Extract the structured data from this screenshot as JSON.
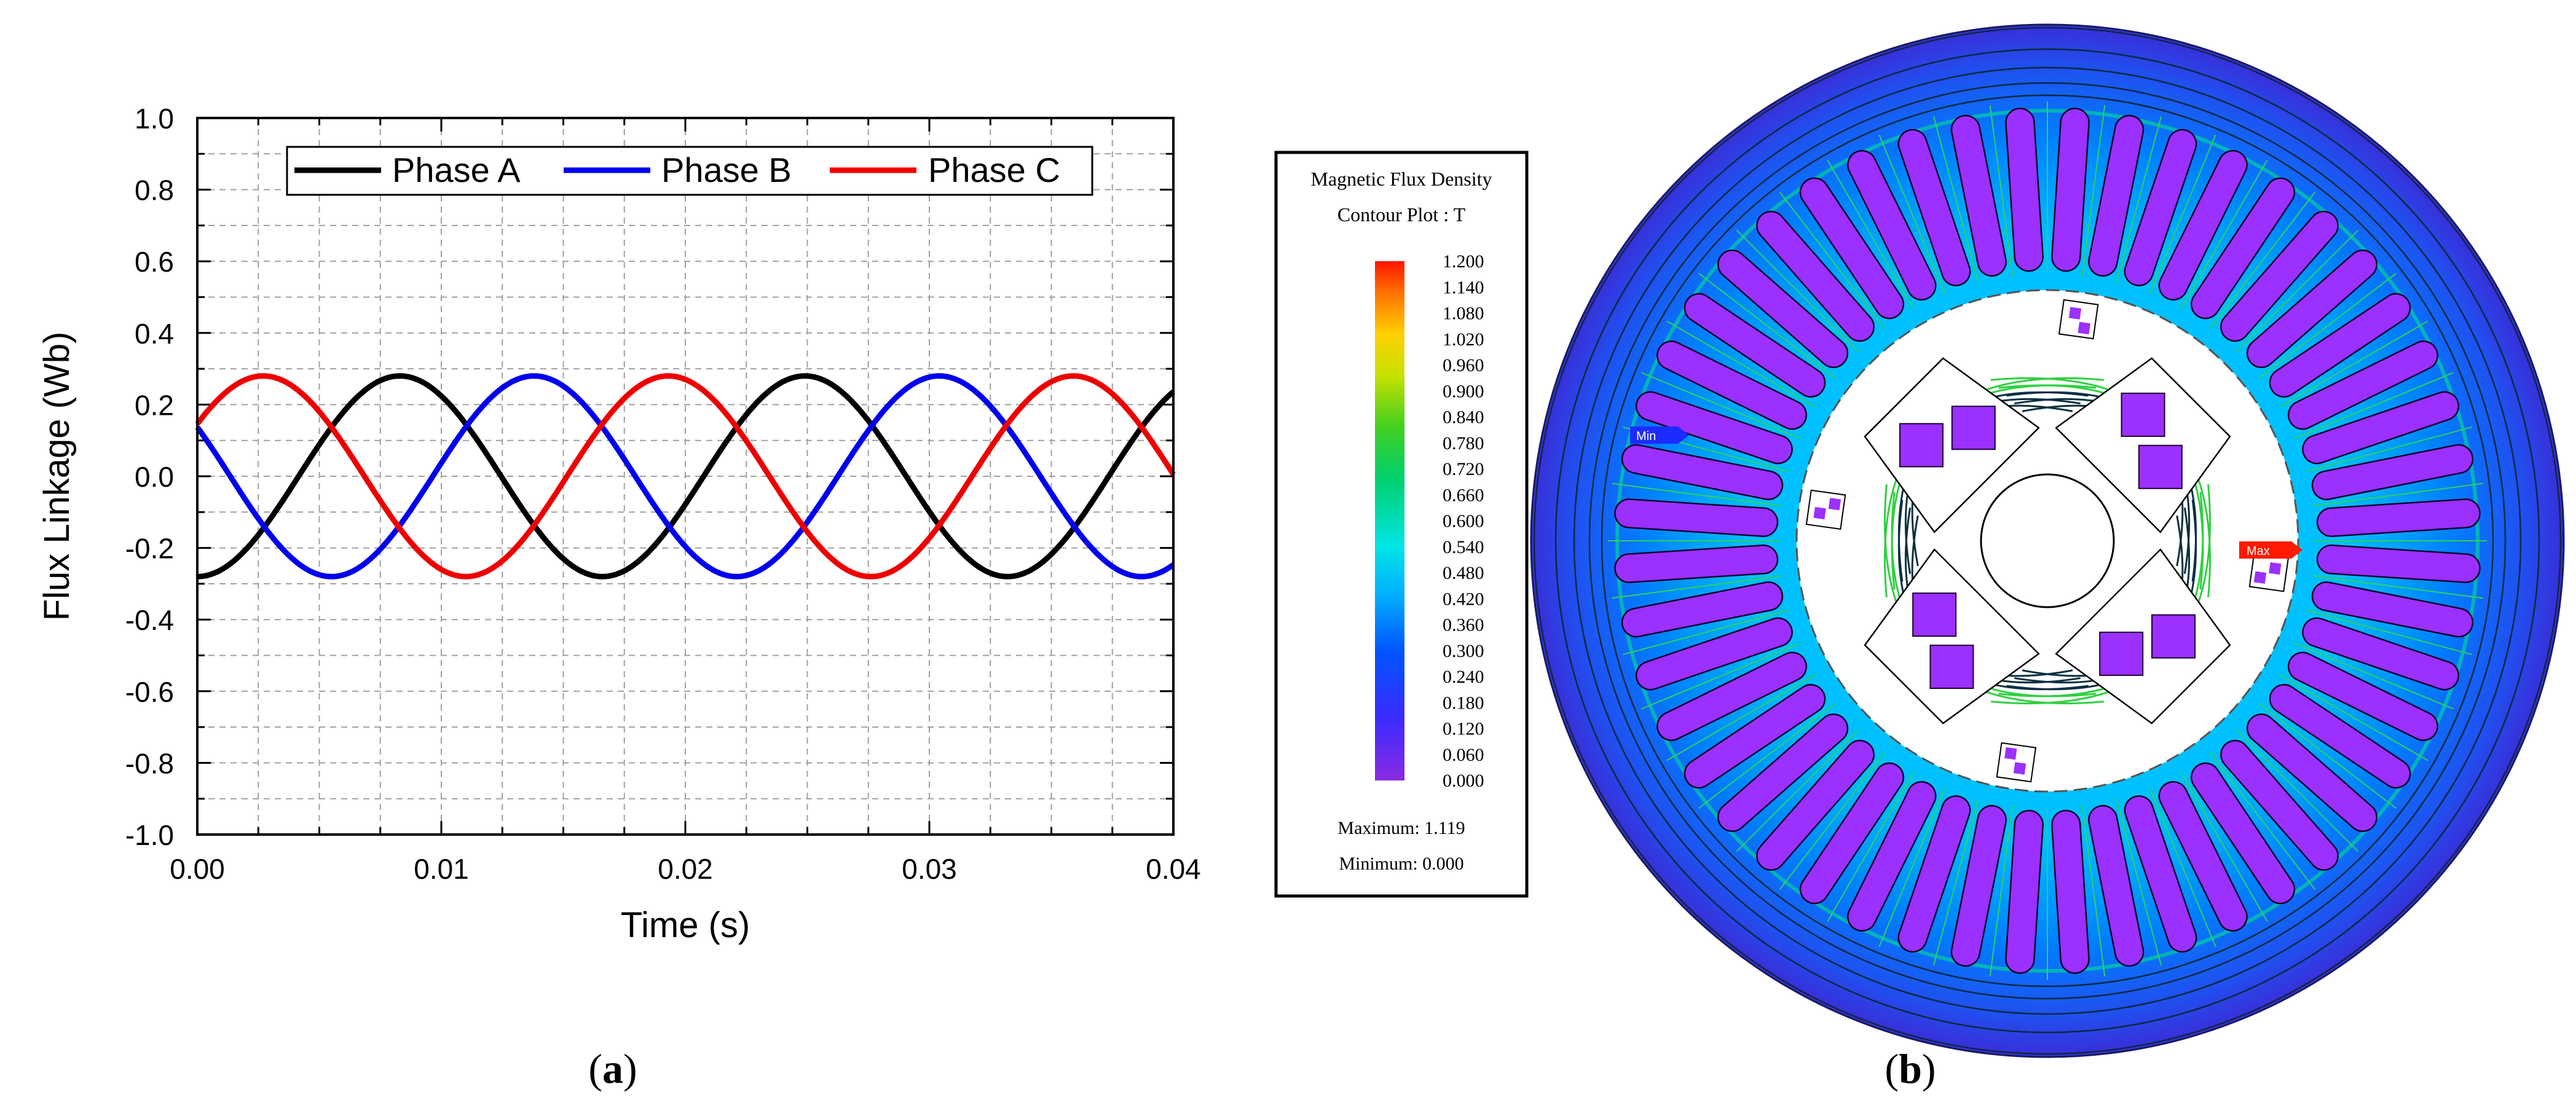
{
  "panel_labels": {
    "a": "(a)",
    "b": "(b)",
    "a_letter": "a",
    "b_letter": "b"
  },
  "colors": {
    "phase_a": "#000000",
    "phase_b": "#0000ee",
    "phase_c": "#ee0000",
    "grid": "#a0a0a0",
    "rotor_magnet": "#9b30ff"
  },
  "chart_data": [
    {
      "type": "line",
      "title": "",
      "xlabel": "Time (s)",
      "ylabel": "Flux Linkage (Wb)",
      "xlim": [
        0,
        0.04
      ],
      "ylim": [
        -1.0,
        1.0
      ],
      "xticks": [
        "0.00",
        "0.01",
        "0.02",
        "0.03",
        "0.04"
      ],
      "yticks": [
        "1.0",
        "0.8",
        "0.6",
        "0.4",
        "0.2",
        "0.0",
        "-0.2",
        "-0.4",
        "-0.6",
        "-0.8",
        "-1.0"
      ],
      "grid": true,
      "legend_position": "top",
      "amplitude_wb": 0.28,
      "period_s": 0.0166,
      "series": [
        {
          "name": "Phase A",
          "color": "#000000",
          "x_at_peak": 0.0083,
          "y_at_x0": -0.28,
          "y_at_x_end": 0.24
        },
        {
          "name": "Phase B",
          "color": "#0000ee",
          "x_at_peak": 0.0138,
          "y_at_x0": 0.14,
          "y_at_x_end": -0.27
        },
        {
          "name": "Phase C",
          "color": "#ee0000",
          "x_at_peak": 0.0027,
          "y_at_x0": 0.14,
          "y_at_x_end": 0.03
        }
      ]
    },
    {
      "type": "heatmap",
      "title": "Magnetic Flux Density",
      "subtitle": "Contour Plot : T",
      "scale_labels": [
        "1.200",
        "1.140",
        "1.080",
        "1.020",
        "0.960",
        "0.900",
        "0.840",
        "0.780",
        "0.720",
        "0.660",
        "0.600",
        "0.540",
        "0.480",
        "0.420",
        "0.360",
        "0.300",
        "0.240",
        "0.180",
        "0.120",
        "0.060",
        "0.000"
      ],
      "maximum_text": "Maximum: 1.119",
      "minimum_text": "Minimum: 0.000",
      "max_marker": "Max",
      "min_marker": "Min",
      "range": [
        0.0,
        1.2
      ],
      "stator_slots": 48,
      "rotor_poles": 4
    }
  ]
}
